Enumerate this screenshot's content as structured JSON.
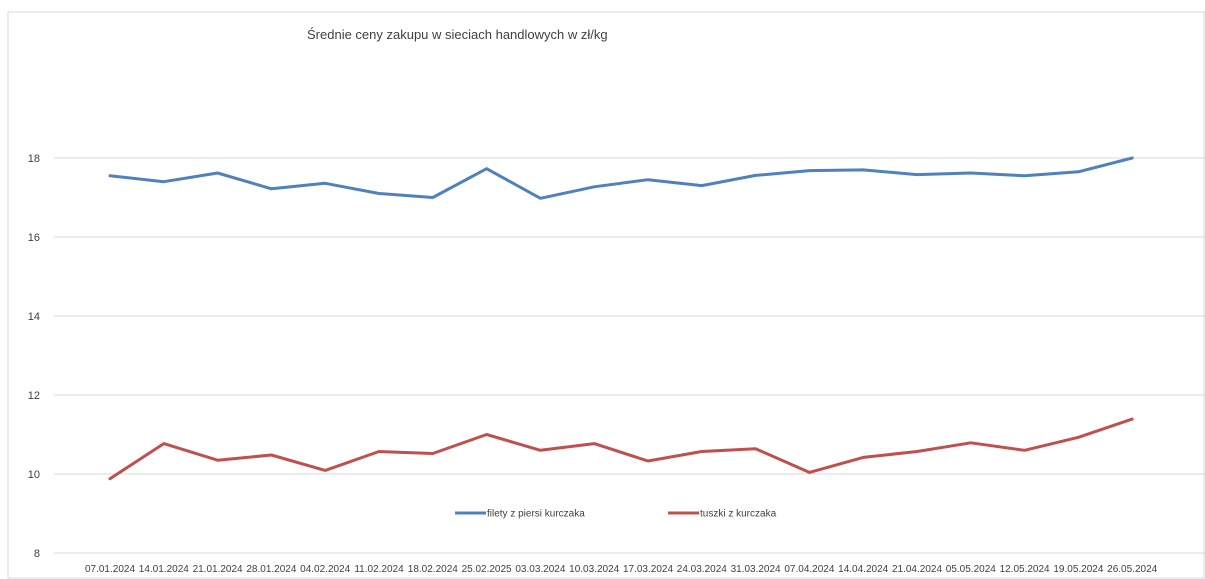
{
  "chart_data": {
    "type": "line",
    "title": "Średnie ceny zakupu w sieciach handlowych w zł/kg",
    "xlabel": "",
    "ylabel": "",
    "ylim": [
      8,
      18
    ],
    "yticks": [
      8,
      10,
      12,
      14,
      16,
      18
    ],
    "grid": true,
    "legend_position": "bottom-center",
    "categories": [
      "07.01.2024",
      "14.01.2024",
      "21.01.2024",
      "28.01.2024",
      "04.02.2024",
      "11.02.2024",
      "18.02.2024",
      "25.02.2025",
      "03.03.2024",
      "10.03.2024",
      "17.03.2024",
      "24.03.2024",
      "31.03.2024",
      "07.04.2024",
      "14.04.2024",
      "21.04.2024",
      "05.05.2024",
      "12.05.2024",
      "19.05.2024",
      "26.05.2024"
    ],
    "series": [
      {
        "name": "filety z piersi kurczaka",
        "color": "#4f81bd",
        "values": [
          17.55,
          17.4,
          17.62,
          17.22,
          17.36,
          17.1,
          17.0,
          17.73,
          16.98,
          17.27,
          17.45,
          17.3,
          17.56,
          17.68,
          17.7,
          17.58,
          17.62,
          17.55,
          17.65,
          18.0
        ]
      },
      {
        "name": "tuszki  z kurczaka",
        "color": "#c0504d",
        "values": [
          9.88,
          10.77,
          10.35,
          10.48,
          10.09,
          10.57,
          10.52,
          11.0,
          10.6,
          10.77,
          10.33,
          10.57,
          10.64,
          10.04,
          10.42,
          10.57,
          10.79,
          10.6,
          10.93,
          11.39
        ]
      }
    ]
  }
}
